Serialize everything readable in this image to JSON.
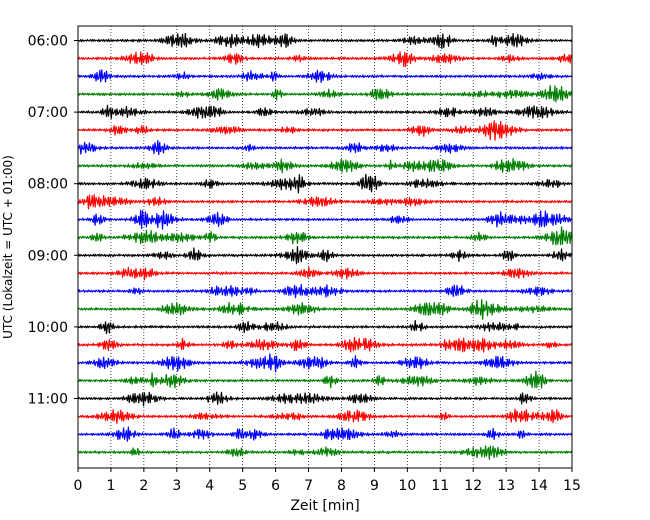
{
  "chart_data": {
    "type": "line",
    "title": "",
    "xlabel": "Zeit  [min]",
    "ylabel": "UTC (Lokalzeit = UTC + 01:00)",
    "xlim": [
      0,
      15
    ],
    "x_ticks": [
      "0",
      "1",
      "2",
      "3",
      "4",
      "5",
      "6",
      "7",
      "8",
      "9",
      "10",
      "11",
      "12",
      "13",
      "14",
      "15"
    ],
    "y_ticks": [
      "06:00",
      "07:00",
      "08:00",
      "09:00",
      "10:00",
      "11:00"
    ],
    "row_minutes": 15,
    "start_time": "06:00",
    "trace_count": 24,
    "colors": [
      "#000000",
      "#ff0000",
      "#0000ff",
      "#007f00"
    ],
    "grid": "vertical-dotted",
    "legend": "none"
  }
}
